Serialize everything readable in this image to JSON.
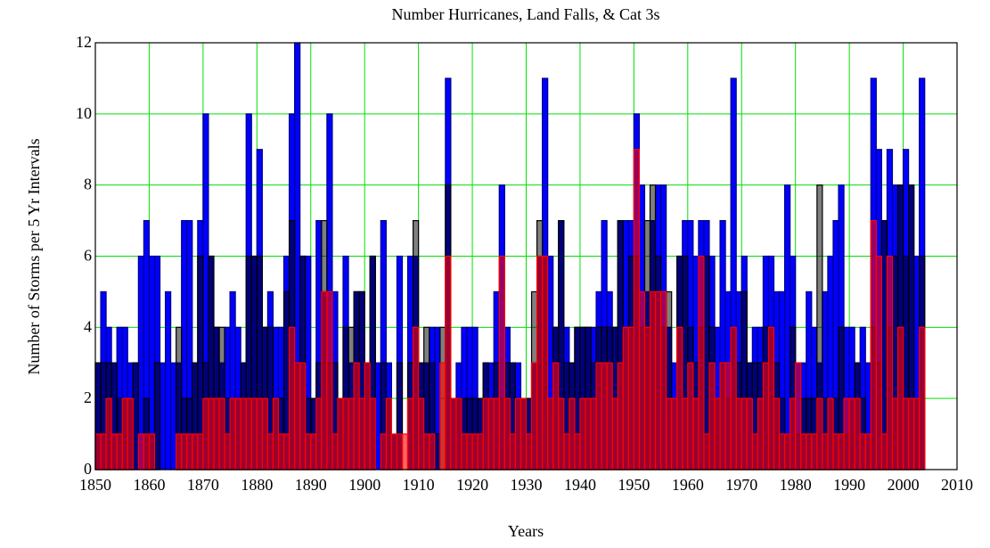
{
  "chart_data": {
    "type": "bar",
    "title": "Number Hurricanes, Land Falls, & Cat 3s",
    "x_label": "Years",
    "y_label": "Number of Storms per 5 Yr Intervals",
    "xlim": [
      1850,
      2010
    ],
    "xticks": [
      1850,
      1860,
      1870,
      1880,
      1890,
      1900,
      1910,
      1920,
      1930,
      1940,
      1950,
      1960,
      1970,
      1980,
      1990,
      2000,
      2010
    ],
    "ylim": [
      0,
      12
    ],
    "yticks": [
      0,
      2,
      4,
      6,
      8,
      10,
      12
    ],
    "grid": true,
    "grid_color": "#00e000",
    "x": [
      1850,
      1851,
      1852,
      1853,
      1854,
      1855,
      1856,
      1857,
      1858,
      1859,
      1860,
      1861,
      1862,
      1863,
      1864,
      1865,
      1866,
      1867,
      1868,
      1869,
      1870,
      1871,
      1872,
      1873,
      1874,
      1875,
      1876,
      1877,
      1878,
      1879,
      1880,
      1881,
      1882,
      1883,
      1884,
      1885,
      1886,
      1887,
      1888,
      1889,
      1890,
      1891,
      1892,
      1893,
      1894,
      1895,
      1896,
      1897,
      1898,
      1899,
      1900,
      1901,
      1902,
      1903,
      1904,
      1905,
      1906,
      1907,
      1908,
      1909,
      1910,
      1911,
      1912,
      1913,
      1914,
      1915,
      1916,
      1917,
      1918,
      1919,
      1920,
      1921,
      1922,
      1923,
      1924,
      1925,
      1926,
      1927,
      1928,
      1929,
      1930,
      1931,
      1932,
      1933,
      1934,
      1935,
      1936,
      1937,
      1938,
      1939,
      1940,
      1941,
      1942,
      1943,
      1944,
      1945,
      1946,
      1947,
      1948,
      1949,
      1950,
      1951,
      1952,
      1953,
      1954,
      1955,
      1956,
      1957,
      1958,
      1959,
      1960,
      1961,
      1962,
      1963,
      1964,
      1965,
      1966,
      1967,
      1968,
      1969,
      1970,
      1971,
      1972,
      1973,
      1974,
      1975,
      1976,
      1977,
      1978,
      1979,
      1980,
      1981,
      1982,
      1983,
      1984,
      1985,
      1986,
      1987,
      1988,
      1989,
      1990,
      1991,
      1992,
      1993,
      1994,
      1995,
      1996,
      1997,
      1998,
      1999,
      2000,
      2001,
      2002,
      2003
    ],
    "series": [
      {
        "color": "#0000ff",
        "values": [
          3,
          5,
          4,
          3,
          4,
          4,
          3,
          3,
          6,
          7,
          6,
          6,
          3,
          5,
          3,
          3,
          7,
          7,
          3,
          7,
          10,
          6,
          4,
          3,
          4,
          5,
          4,
          3,
          10,
          6,
          9,
          4,
          5,
          4,
          4,
          6,
          10,
          12,
          6,
          6,
          2,
          7,
          5,
          10,
          5,
          2,
          6,
          3,
          5,
          5,
          3,
          6,
          3,
          7,
          3,
          1,
          6,
          0,
          6,
          6,
          3,
          3,
          4,
          4,
          0,
          11,
          2,
          3,
          4,
          4,
          4,
          2,
          3,
          3,
          5,
          8,
          4,
          3,
          3,
          2,
          2,
          3,
          6,
          11,
          6,
          4,
          7,
          4,
          3,
          4,
          4,
          4,
          4,
          5,
          7,
          5,
          4,
          7,
          7,
          7,
          10,
          8,
          5,
          7,
          8,
          8,
          4,
          3,
          6,
          7,
          7,
          6,
          7,
          7,
          6,
          4,
          7,
          5,
          11,
          5,
          6,
          3,
          4,
          4,
          6,
          6,
          5,
          5,
          8,
          6,
          3,
          3,
          5,
          4,
          3,
          5,
          6,
          7,
          8,
          4,
          4,
          3,
          4,
          3,
          11,
          9,
          7,
          9,
          8,
          8,
          9,
          8,
          6,
          11
        ]
      },
      {
        "color": "#000000",
        "values": [
          3,
          3,
          3,
          3,
          2,
          2,
          2,
          3,
          0,
          2,
          1,
          3,
          0,
          0,
          0,
          4,
          2,
          2,
          3,
          6,
          3,
          6,
          4,
          4,
          2,
          2,
          2,
          3,
          6,
          6,
          6,
          4,
          4,
          2,
          2,
          5,
          7,
          3,
          6,
          2,
          2,
          3,
          7,
          3,
          3,
          2,
          4,
          4,
          5,
          5,
          3,
          6,
          0,
          3,
          2,
          1,
          3,
          0,
          3,
          7,
          3,
          4,
          3,
          1,
          4,
          8,
          2,
          2,
          2,
          2,
          2,
          2,
          3,
          2,
          3,
          2,
          3,
          3,
          2,
          2,
          2,
          5,
          7,
          6,
          2,
          4,
          7,
          3,
          3,
          4,
          4,
          4,
          3,
          4,
          4,
          4,
          4,
          7,
          4,
          6,
          6,
          4,
          7,
          8,
          6,
          4,
          5,
          2,
          6,
          6,
          4,
          3,
          4,
          6,
          4,
          2,
          3,
          2,
          4,
          3,
          5,
          3,
          3,
          3,
          4,
          4,
          3,
          2,
          1,
          4,
          1,
          2,
          2,
          2,
          8,
          2,
          2,
          2,
          4,
          1,
          2,
          3,
          2,
          1,
          4,
          3,
          7,
          4,
          6,
          8,
          6,
          8,
          2,
          6
        ]
      },
      {
        "color": "#ff0000",
        "values": [
          1,
          1,
          2,
          1,
          1,
          2,
          2,
          0,
          1,
          1,
          1,
          0,
          0,
          0,
          0,
          1,
          1,
          1,
          1,
          1,
          2,
          2,
          2,
          2,
          1,
          2,
          2,
          2,
          2,
          2,
          2,
          2,
          1,
          2,
          1,
          1,
          4,
          3,
          3,
          1,
          1,
          2,
          5,
          5,
          1,
          2,
          2,
          2,
          3,
          2,
          3,
          2,
          0,
          1,
          2,
          1,
          1,
          1,
          2,
          4,
          2,
          1,
          1,
          0,
          3,
          6,
          2,
          2,
          1,
          1,
          1,
          1,
          2,
          2,
          2,
          6,
          2,
          1,
          2,
          2,
          1,
          3,
          6,
          6,
          2,
          3,
          2,
          1,
          2,
          1,
          2,
          2,
          2,
          3,
          3,
          3,
          2,
          3,
          4,
          4,
          9,
          5,
          4,
          5,
          5,
          5,
          2,
          2,
          4,
          2,
          3,
          2,
          6,
          1,
          3,
          2,
          3,
          3,
          4,
          2,
          2,
          2,
          1,
          2,
          3,
          4,
          2,
          1,
          1,
          2,
          3,
          1,
          1,
          1,
          2,
          1,
          2,
          1,
          1,
          2,
          2,
          2,
          1,
          1,
          7,
          6,
          1,
          6,
          2,
          4,
          2,
          2,
          2,
          4
        ]
      }
    ]
  }
}
